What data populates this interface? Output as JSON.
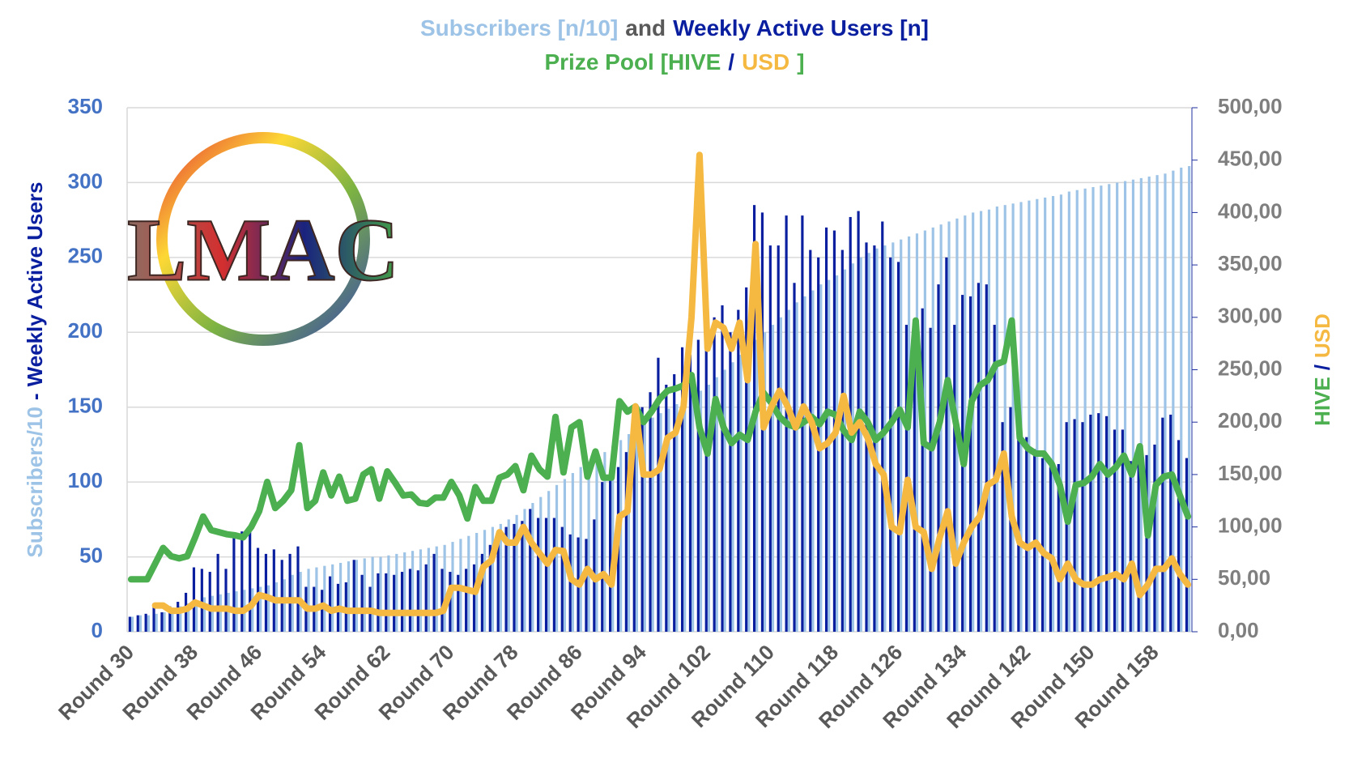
{
  "chart_data": {
    "type": "bar_line_combo",
    "title_lines": [
      [
        {
          "text": "Subscribers [n/10]",
          "color": "#9dc3e6"
        },
        {
          "text": "and",
          "color": "#595959"
        },
        {
          "text": "Weekly Active Users [n]",
          "color": "#0a1fa0"
        }
      ],
      [
        {
          "text": "Prize Pool [HIVE",
          "color": "#4caf50"
        },
        {
          "text": "/",
          "color": "#0a1fa0"
        },
        {
          "text": "USD",
          "color": "#f5b942"
        },
        {
          "text": "]",
          "color": "#4caf50"
        }
      ]
    ],
    "y_label_parts": [
      {
        "text": "Subscribers/10",
        "color": "#9dc3e6"
      },
      {
        "text": "-",
        "color": "#0a1fa0"
      },
      {
        "text": "Weekly Active Users",
        "color": "#0a1fa0"
      }
    ],
    "y2_label_parts": [
      {
        "text": "HIVE",
        "color": "#4caf50"
      },
      {
        "text": "/",
        "color": "#0a1fa0"
      },
      {
        "text": "USD",
        "color": "#f5b942"
      }
    ],
    "logo_text": "LMAC",
    "categories": [
      "Round 30",
      null,
      null,
      null,
      null,
      null,
      null,
      null,
      "Round 38",
      null,
      null,
      null,
      null,
      null,
      null,
      null,
      "Round 46",
      null,
      null,
      null,
      null,
      null,
      null,
      null,
      "Round 54",
      null,
      null,
      null,
      null,
      null,
      null,
      null,
      "Round 62",
      null,
      null,
      null,
      null,
      null,
      null,
      null,
      "Round 70",
      null,
      null,
      null,
      null,
      null,
      null,
      null,
      "Round 78",
      null,
      null,
      null,
      null,
      null,
      null,
      null,
      "Round 86",
      null,
      null,
      null,
      null,
      null,
      null,
      null,
      "Round 94",
      null,
      null,
      null,
      null,
      null,
      null,
      null,
      "Round 102",
      null,
      null,
      null,
      null,
      null,
      null,
      null,
      "Round 110",
      null,
      null,
      null,
      null,
      null,
      null,
      null,
      "Round 118",
      null,
      null,
      null,
      null,
      null,
      null,
      null,
      "Round 126",
      null,
      null,
      null,
      null,
      null,
      null,
      null,
      "Round 134",
      null,
      null,
      null,
      null,
      null,
      null,
      null,
      "Round 142",
      null,
      null,
      null,
      null,
      null,
      null,
      null,
      "Round 150",
      null,
      null,
      null,
      null,
      null,
      null,
      null,
      "Round 158",
      null,
      null,
      null,
      null
    ],
    "ylim": [
      0,
      350
    ],
    "yticks": [
      0,
      50,
      100,
      150,
      200,
      250,
      300,
      350
    ],
    "y2lim": [
      0,
      500
    ],
    "y2ticks": [
      {
        "value": 0,
        "label": "0,00"
      },
      {
        "value": 50,
        "label": "50,00"
      },
      {
        "value": 100,
        "label": "100,00"
      },
      {
        "value": 150,
        "label": "150,00"
      },
      {
        "value": 200,
        "label": "200,00"
      },
      {
        "value": 250,
        "label": "250,00"
      },
      {
        "value": 300,
        "label": "300,00"
      },
      {
        "value": 350,
        "label": "350,00"
      },
      {
        "value": 400,
        "label": "400,00"
      },
      {
        "value": 450,
        "label": "450,00"
      },
      {
        "value": 500,
        "label": "500,00"
      }
    ],
    "grid": true,
    "series": [
      {
        "name": "Subscribers [n/10]",
        "kind": "bar",
        "color": "#9dc3e6",
        "values": [
          10,
          11,
          11,
          12,
          13,
          15,
          17,
          19,
          21,
          23,
          24,
          25,
          26,
          27,
          28,
          29,
          30,
          31,
          33,
          35,
          38,
          40,
          42,
          43,
          44,
          45,
          46,
          47,
          48,
          49,
          50,
          50,
          51,
          52,
          53,
          54,
          55,
          56,
          57,
          58,
          60,
          62,
          64,
          66,
          68,
          70,
          72,
          75,
          78,
          82,
          86,
          90,
          94,
          98,
          102,
          106,
          110,
          113,
          116,
          120,
          124,
          128,
          132,
          136,
          140,
          143,
          146,
          149,
          152,
          155,
          158,
          161,
          165,
          170,
          175,
          180,
          185,
          190,
          195,
          200,
          205,
          210,
          215,
          220,
          224,
          228,
          232,
          235,
          238,
          242,
          246,
          250,
          253,
          256,
          258,
          260,
          262,
          264,
          266,
          268,
          270,
          272,
          274,
          276,
          278,
          280,
          281,
          282,
          284,
          285,
          286,
          287,
          288,
          289,
          290,
          291,
          292,
          294,
          295,
          296,
          297,
          298,
          299,
          300,
          301,
          302,
          303,
          304,
          305,
          306,
          308,
          310,
          311
        ]
      },
      {
        "name": "Weekly Active Users [n]",
        "kind": "bar",
        "color": "#0a1fa0",
        "values": [
          10,
          11,
          12,
          19,
          13,
          17,
          20,
          26,
          43,
          42,
          40,
          52,
          42,
          64,
          67,
          70,
          56,
          52,
          55,
          48,
          52,
          57,
          30,
          30,
          28,
          37,
          32,
          33,
          48,
          38,
          30,
          39,
          39,
          38,
          40,
          42,
          41,
          45,
          52,
          42,
          40,
          38,
          42,
          45,
          52,
          58,
          62,
          70,
          72,
          74,
          82,
          76,
          76,
          76,
          70,
          65,
          63,
          62,
          75,
          100,
          105,
          110,
          120,
          130,
          150,
          160,
          183,
          165,
          172,
          190,
          185,
          195,
          205,
          210,
          218,
          200,
          215,
          230,
          285,
          280,
          258,
          258,
          278,
          233,
          278,
          255,
          250,
          270,
          268,
          255,
          277,
          281,
          260,
          258,
          274,
          250,
          247,
          205,
          182,
          216,
          203,
          232,
          250,
          205,
          225,
          224,
          233,
          232,
          205,
          140,
          150,
          135,
          130,
          122,
          116,
          110,
          112,
          140,
          142,
          140,
          145,
          146,
          144,
          135,
          135,
          114,
          118,
          118,
          125,
          143,
          145,
          128,
          116
        ]
      },
      {
        "name": "HIVE",
        "kind": "line",
        "axis": "y2",
        "color": "#4caf50",
        "values": [
          50,
          50,
          50,
          65,
          80,
          72,
          70,
          72,
          90,
          110,
          97,
          95,
          93,
          92,
          90,
          100,
          115,
          143,
          118,
          125,
          135,
          178,
          118,
          125,
          152,
          130,
          148,
          125,
          127,
          150,
          155,
          127,
          153,
          142,
          130,
          131,
          123,
          122,
          128,
          128,
          143,
          130,
          108,
          138,
          125,
          125,
          147,
          150,
          158,
          135,
          168,
          155,
          148,
          205,
          152,
          195,
          200,
          148,
          172,
          147,
          147,
          220,
          210,
          215,
          200,
          210,
          222,
          230,
          232,
          235,
          245,
          195,
          170,
          222,
          195,
          180,
          188,
          183,
          210,
          228,
          218,
          205,
          198,
          195,
          200,
          205,
          198,
          210,
          207,
          192,
          183,
          210,
          200,
          183,
          190,
          200,
          212,
          195,
          297,
          180,
          175,
          200,
          240,
          200,
          160,
          220,
          235,
          240,
          255,
          258,
          297,
          185,
          175,
          170,
          170,
          160,
          140,
          105,
          140,
          142,
          148,
          160,
          150,
          157,
          168,
          150,
          177,
          92,
          140,
          148,
          150,
          130,
          110
        ]
      },
      {
        "name": "USD",
        "kind": "line",
        "axis": "y2",
        "color": "#f5b942",
        "values": [
          null,
          null,
          null,
          25,
          25,
          20,
          20,
          22,
          28,
          25,
          22,
          22,
          22,
          20,
          20,
          25,
          35,
          33,
          30,
          30,
          30,
          30,
          22,
          22,
          25,
          20,
          22,
          20,
          20,
          20,
          20,
          18,
          18,
          18,
          18,
          18,
          18,
          18,
          18,
          20,
          42,
          42,
          40,
          38,
          62,
          68,
          95,
          85,
          85,
          100,
          85,
          75,
          65,
          78,
          77,
          50,
          45,
          60,
          50,
          55,
          45,
          110,
          115,
          215,
          150,
          150,
          155,
          185,
          190,
          215,
          300,
          455,
          270,
          295,
          290,
          270,
          295,
          240,
          370,
          195,
          215,
          230,
          215,
          195,
          215,
          200,
          175,
          180,
          190,
          225,
          190,
          200,
          185,
          160,
          150,
          100,
          95,
          145,
          100,
          95,
          60,
          90,
          115,
          65,
          85,
          100,
          110,
          140,
          145,
          170,
          110,
          85,
          80,
          85,
          75,
          70,
          50,
          65,
          50,
          45,
          45,
          50,
          52,
          55,
          50,
          65,
          35,
          45,
          60,
          60,
          70,
          55,
          45
        ]
      }
    ]
  }
}
